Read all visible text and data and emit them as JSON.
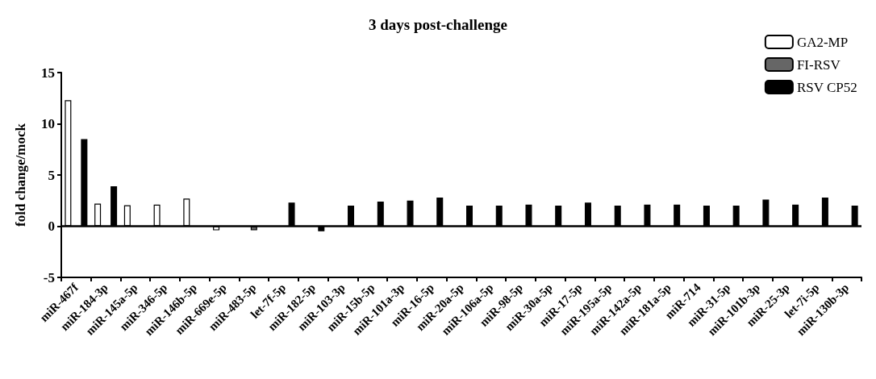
{
  "chart_data": {
    "type": "bar",
    "title": "3 days post-challenge",
    "ylabel": "fold change/mock",
    "categories": [
      "miR-467f",
      "miR-184-3p",
      "miR-145a-5p",
      "miR-346-5p",
      "miR-146b-5p",
      "miR-669e-5p",
      "miR-483-5p",
      "let-7f-5p",
      "miR-182-5p",
      "miR-103-3p",
      "miR-15b-5p",
      "miR-101a-3p",
      "miR-16-5p",
      "miR-20a-5p",
      "miR-106a-5p",
      "miR-98-5p",
      "miR-30a-5p",
      "miR-17-5p",
      "miR-195a-5p",
      "miR-142a-5p",
      "miR-181a-5p",
      "miR-714",
      "miR-31-5p",
      "miR-101b-3p",
      "miR-25-3p",
      "let-7i-5p",
      "miR-130b-3p"
    ],
    "series": [
      {
        "name": "GA2-MP",
        "color": "#ffffff",
        "values": [
          12.3,
          2.2,
          2.05,
          2.1,
          2.7,
          -0.4,
          null,
          null,
          null,
          null,
          null,
          null,
          null,
          null,
          null,
          null,
          null,
          null,
          null,
          null,
          null,
          null,
          null,
          null,
          null,
          null,
          null
        ]
      },
      {
        "name": "FI-RSV",
        "color": "#666666",
        "values": [
          null,
          null,
          null,
          null,
          null,
          null,
          -0.4,
          null,
          null,
          null,
          null,
          null,
          null,
          null,
          null,
          null,
          null,
          null,
          null,
          null,
          null,
          null,
          null,
          null,
          null,
          null,
          null
        ]
      },
      {
        "name": "RSV CP52",
        "color": "#000000",
        "values": [
          8.5,
          3.9,
          null,
          null,
          null,
          null,
          null,
          2.3,
          -0.5,
          2.0,
          2.4,
          2.5,
          2.8,
          2.0,
          2.0,
          2.1,
          2.0,
          2.3,
          2.0,
          2.1,
          2.1,
          2.0,
          2.0,
          2.6,
          2.1,
          2.8,
          2.0
        ]
      }
    ],
    "ref_lines": [
      {
        "axis": "y",
        "value": 0,
        "color": "#000000"
      }
    ],
    "ylim": [
      -5,
      15
    ],
    "yticks": [
      -5,
      0,
      5,
      10,
      15
    ],
    "grid": false,
    "legend": "top right"
  }
}
